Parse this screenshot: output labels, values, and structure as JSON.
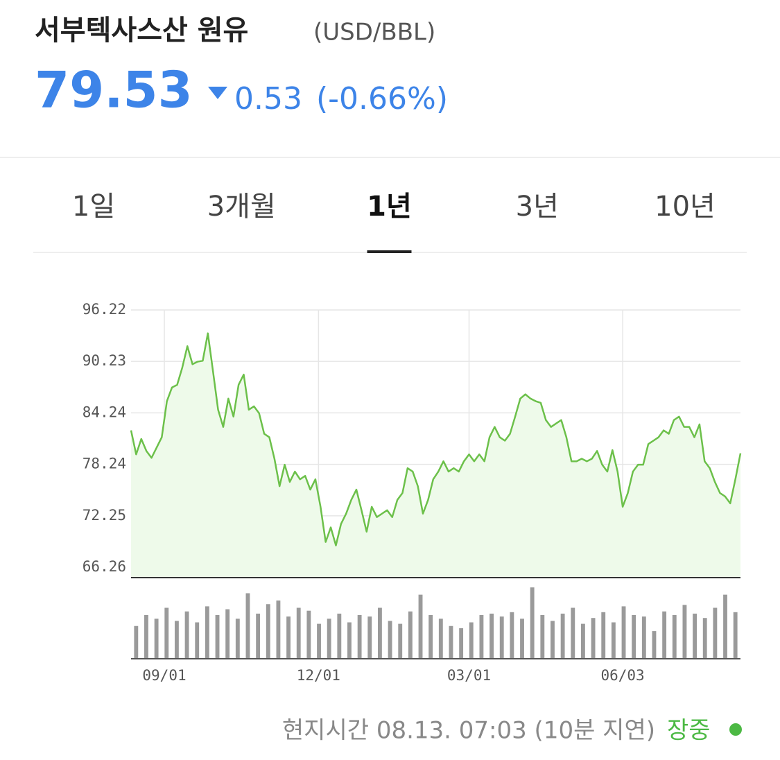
{
  "header": {
    "title": "서부텍사스산 원유",
    "unit": "(USD/BBL)",
    "price": 79.53,
    "change": 0.53,
    "change_pct": "(-0.66%)"
  },
  "tabs": {
    "items": [
      "1일",
      "3개월",
      "1년",
      "3년",
      "10년"
    ],
    "active": 2
  },
  "chart_data": {
    "type": "line",
    "color": "#6cc04a",
    "fill": "#eefaea",
    "grid": true,
    "values": [
      82.2,
      79.4,
      81.2,
      79.8,
      79.0,
      80.2,
      81.4,
      85.6,
      87.2,
      87.5,
      89.5,
      92.0,
      89.9,
      90.2,
      90.3,
      93.5,
      89.1,
      84.6,
      82.6,
      85.9,
      83.8,
      87.5,
      88.7,
      84.6,
      85.0,
      84.2,
      81.8,
      81.4,
      78.9,
      75.7,
      78.2,
      76.2,
      77.4,
      76.5,
      76.9,
      75.3,
      76.5,
      73.3,
      69.2,
      70.9,
      68.8,
      71.3,
      72.5,
      74.1,
      75.3,
      72.9,
      70.4,
      73.3,
      72.1,
      72.5,
      72.9,
      72.1,
      74.1,
      74.9,
      77.8,
      77.4,
      75.7,
      72.5,
      74.1,
      76.5,
      77.4,
      78.6,
      77.4,
      77.8,
      77.4,
      78.6,
      79.4,
      78.6,
      79.4,
      78.6,
      81.4,
      82.6,
      81.4,
      81.0,
      81.8,
      83.8,
      85.9,
      86.4,
      85.9,
      85.6,
      85.4,
      83.4,
      82.6,
      83.0,
      83.4,
      81.4,
      78.6,
      78.6,
      78.9,
      78.6,
      78.9,
      79.8,
      78.2,
      77.4,
      79.9,
      77.4,
      73.3,
      74.9,
      77.4,
      78.2,
      78.2,
      80.6,
      81.0,
      81.4,
      82.2,
      81.8,
      83.4,
      83.8,
      82.6,
      82.6,
      81.4,
      82.9,
      78.6,
      77.8,
      76.2,
      74.9,
      74.5,
      73.7,
      76.5,
      79.53
    ],
    "xlim": [
      0,
      119
    ],
    "ylim": [
      65.05,
      96.22
    ],
    "yticks": [
      96.22,
      90.23,
      84.24,
      78.24,
      72.25,
      66.26
    ],
    "xticks": [
      {
        "value": 6.5,
        "label": "09/01"
      },
      {
        "value": 36.6,
        "label": "12/01"
      },
      {
        "value": 66,
        "label": "03/01"
      },
      {
        "value": 96,
        "label": "06/03"
      }
    ],
    "volume": {
      "type": "bar",
      "color": "#9a9a9a",
      "ylim": [
        0,
        100
      ],
      "values": [
        45,
        60,
        55,
        70,
        52,
        65,
        50,
        72,
        60,
        68,
        55,
        90,
        62,
        75,
        80,
        58,
        70,
        66,
        48,
        55,
        62,
        50,
        60,
        58,
        70,
        52,
        48,
        65,
        88,
        60,
        55,
        45,
        42,
        50,
        60,
        62,
        58,
        64,
        55,
        98,
        60,
        52,
        62,
        70,
        48,
        56,
        64,
        50,
        72,
        60,
        58,
        38,
        65,
        60,
        74,
        62,
        56,
        70,
        88,
        64
      ]
    }
  },
  "footer": {
    "time": "현지시간 08.13. 07:03 (10분 지연)",
    "status": "장중"
  }
}
